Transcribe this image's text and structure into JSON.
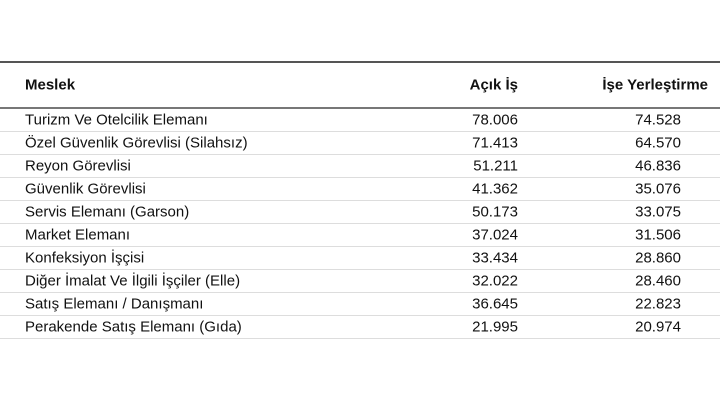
{
  "table": {
    "headers": [
      "Meslek",
      "Açık İş",
      "İşe Yerleştirme"
    ],
    "rows": [
      [
        "Turizm Ve Otelcilik Elemanı",
        "78.006",
        "74.528"
      ],
      [
        "Özel Güvenlik Görevlisi (Silahsız)",
        "71.413",
        "64.570"
      ],
      [
        "Reyon Görevlisi",
        "51.211",
        "46.836"
      ],
      [
        "Güvenlik Görevlisi",
        "41.362",
        "35.076"
      ],
      [
        "Servis Elemanı (Garson)",
        "50.173",
        "33.075"
      ],
      [
        "Market Elemanı",
        "37.024",
        "31.506"
      ],
      [
        "Konfeksiyon İşçisi",
        "33.434",
        "28.860"
      ],
      [
        "Diğer İmalat Ve İlgili İşçiler (Elle)",
        "32.022",
        "28.460"
      ],
      [
        "Satış Elemanı / Danışmanı",
        "36.645",
        "22.823"
      ],
      [
        "Perakende Satış Elemanı (Gıda)",
        "21.995",
        "20.974"
      ]
    ]
  }
}
